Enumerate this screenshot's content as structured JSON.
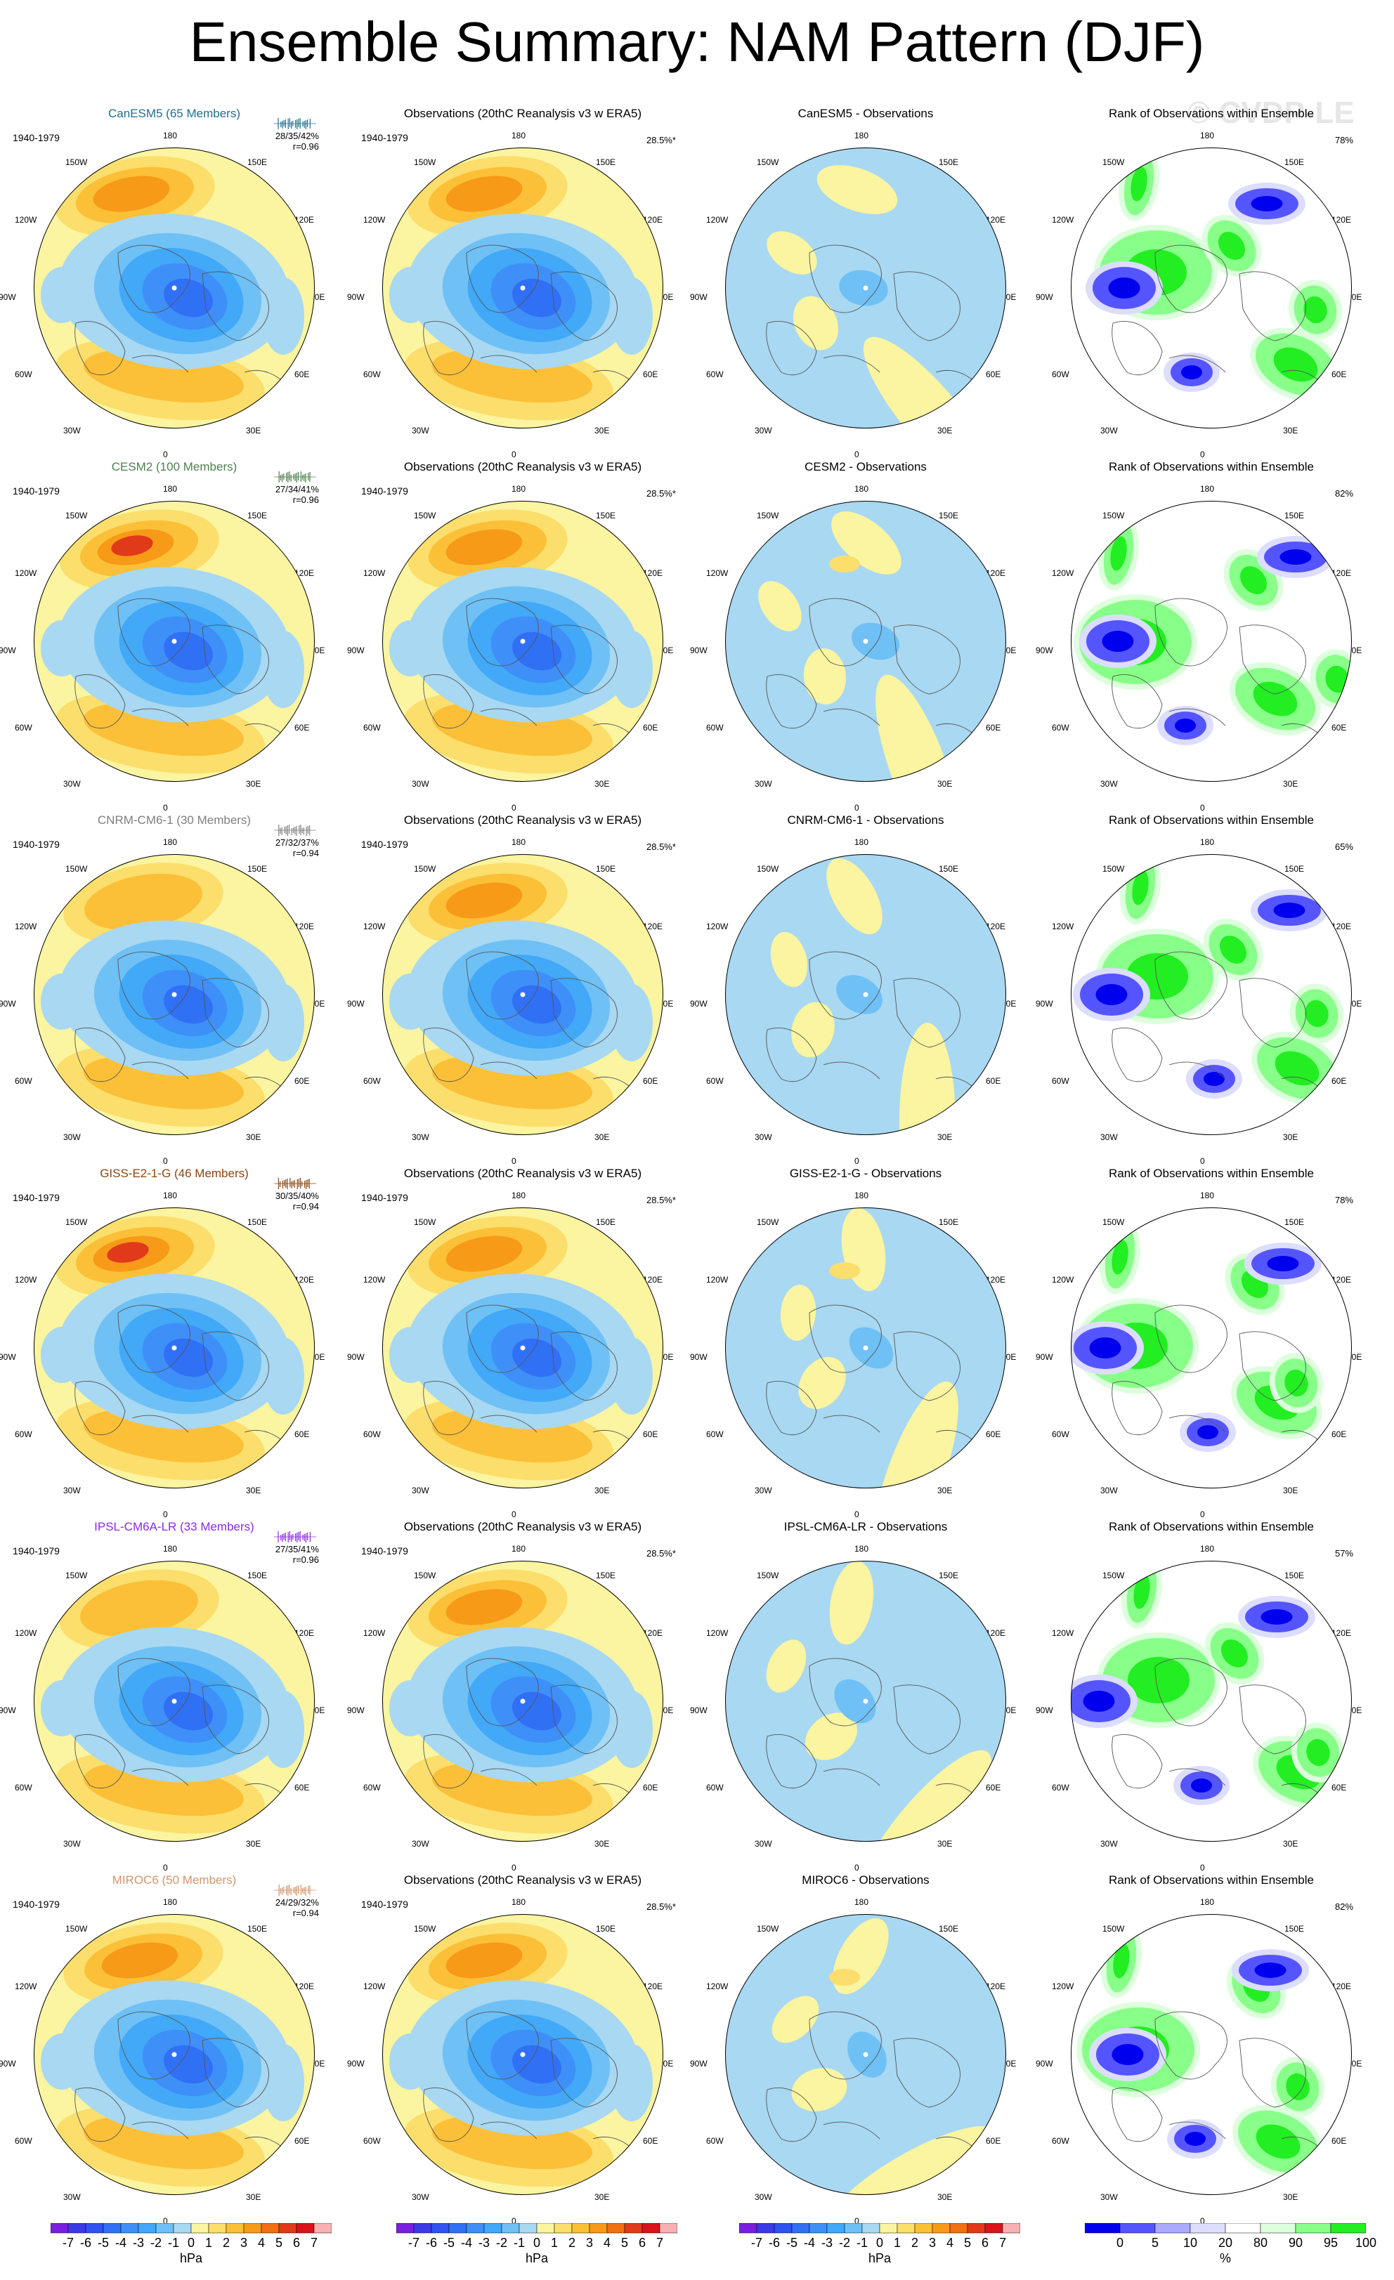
{
  "title": "Ensemble Summary: NAM Pattern (DJF)",
  "watermark": "© CVDP-LE",
  "period": "1940-1979",
  "lon_labels": {
    "n180": "180",
    "w150": "150W",
    "e150": "150E",
    "w120": "120W",
    "e120": "120E",
    "w90": "90W",
    "e90": "90E",
    "w60": "60W",
    "e60": "60E",
    "w30": "30W",
    "e30": "30E",
    "s0": "0"
  },
  "rows": [
    {
      "model_title": "CanESM5 (65 Members)",
      "model_color": "#1f6f8b",
      "stats": "28/35/42%",
      "r": "r=0.96",
      "obs_title": "Observations (20thC Reanalysis v3 w ERA5)",
      "obs_pct": "28.5%*",
      "diff_title": "CanESM5 - Observations",
      "rank_title": "Rank of Observations within Ensemble",
      "rank_pct": "78%"
    },
    {
      "model_title": "CESM2 (100 Members)",
      "model_color": "#4f7f4f",
      "stats": "27/34/41%",
      "r": "r=0.96",
      "obs_title": "Observations (20thC Reanalysis v3 w ERA5)",
      "obs_pct": "28.5%*",
      "diff_title": "CESM2 - Observations",
      "rank_title": "Rank of Observations within Ensemble",
      "rank_pct": "82%"
    },
    {
      "model_title": "CNRM-CM6-1 (30 Members)",
      "model_color": "#7f7f7f",
      "stats": "27/32/37%",
      "r": "r=0.94",
      "obs_title": "Observations (20thC Reanalysis v3 w ERA5)",
      "obs_pct": "28.5%*",
      "diff_title": "CNRM-CM6-1 - Observations",
      "rank_title": "Rank of Observations within Ensemble",
      "rank_pct": "65%"
    },
    {
      "model_title": "GISS-E2-1-G (46 Members)",
      "model_color": "#8b4513",
      "stats": "30/35/40%",
      "r": "r=0.94",
      "obs_title": "Observations (20thC Reanalysis v3 w ERA5)",
      "obs_pct": "28.5%*",
      "diff_title": "GISS-E2-1-G - Observations",
      "rank_title": "Rank of Observations within Ensemble",
      "rank_pct": "78%"
    },
    {
      "model_title": "IPSL-CM6A-LR (33 Members)",
      "model_color": "#8a2be2",
      "stats": "27/35/41%",
      "r": "r=0.96",
      "obs_title": "Observations (20thC Reanalysis v3 w ERA5)",
      "obs_pct": "28.5%*",
      "diff_title": "IPSL-CM6A-LR - Observations",
      "rank_title": "Rank of Observations within Ensemble",
      "rank_pct": "57%"
    },
    {
      "model_title": "MIROC6 (50 Members)",
      "model_color": "#d2956b",
      "stats": "24/29/32%",
      "r": "r=0.94",
      "obs_title": "Observations (20thC Reanalysis v3 w ERA5)",
      "obs_pct": "28.5%*",
      "diff_title": "MIROC6 - Observations",
      "rank_title": "Rank of Observations within Ensemble",
      "rank_pct": "82%"
    }
  ],
  "colorbar_hpa": {
    "ticks": [
      "-7",
      "-6",
      "-5",
      "-4",
      "-3",
      "-2",
      "-1",
      "0",
      "1",
      "2",
      "3",
      "4",
      "5",
      "6",
      "7"
    ],
    "unit": "hPa",
    "colors": [
      "#7a1fdf",
      "#3a3ae6",
      "#2f52f0",
      "#3070f5",
      "#3f8ff8",
      "#42a8f8",
      "#6fc0f5",
      "#a8d8f2",
      "#fbf4a0",
      "#fbde6c",
      "#fbc038",
      "#f79a18",
      "#f07012",
      "#e03a1a",
      "#d8141a",
      "#f8b0b0"
    ]
  },
  "colorbar_rank": {
    "ticks": [
      "0",
      "5",
      "10",
      "20",
      "80",
      "90",
      "95",
      "100"
    ],
    "unit": "%",
    "colors": [
      "#0000ee",
      "#5555ff",
      "#aaaaff",
      "#ddddff",
      "#ffffff",
      "#ddffdd",
      "#88ff88",
      "#22ee22"
    ]
  }
}
